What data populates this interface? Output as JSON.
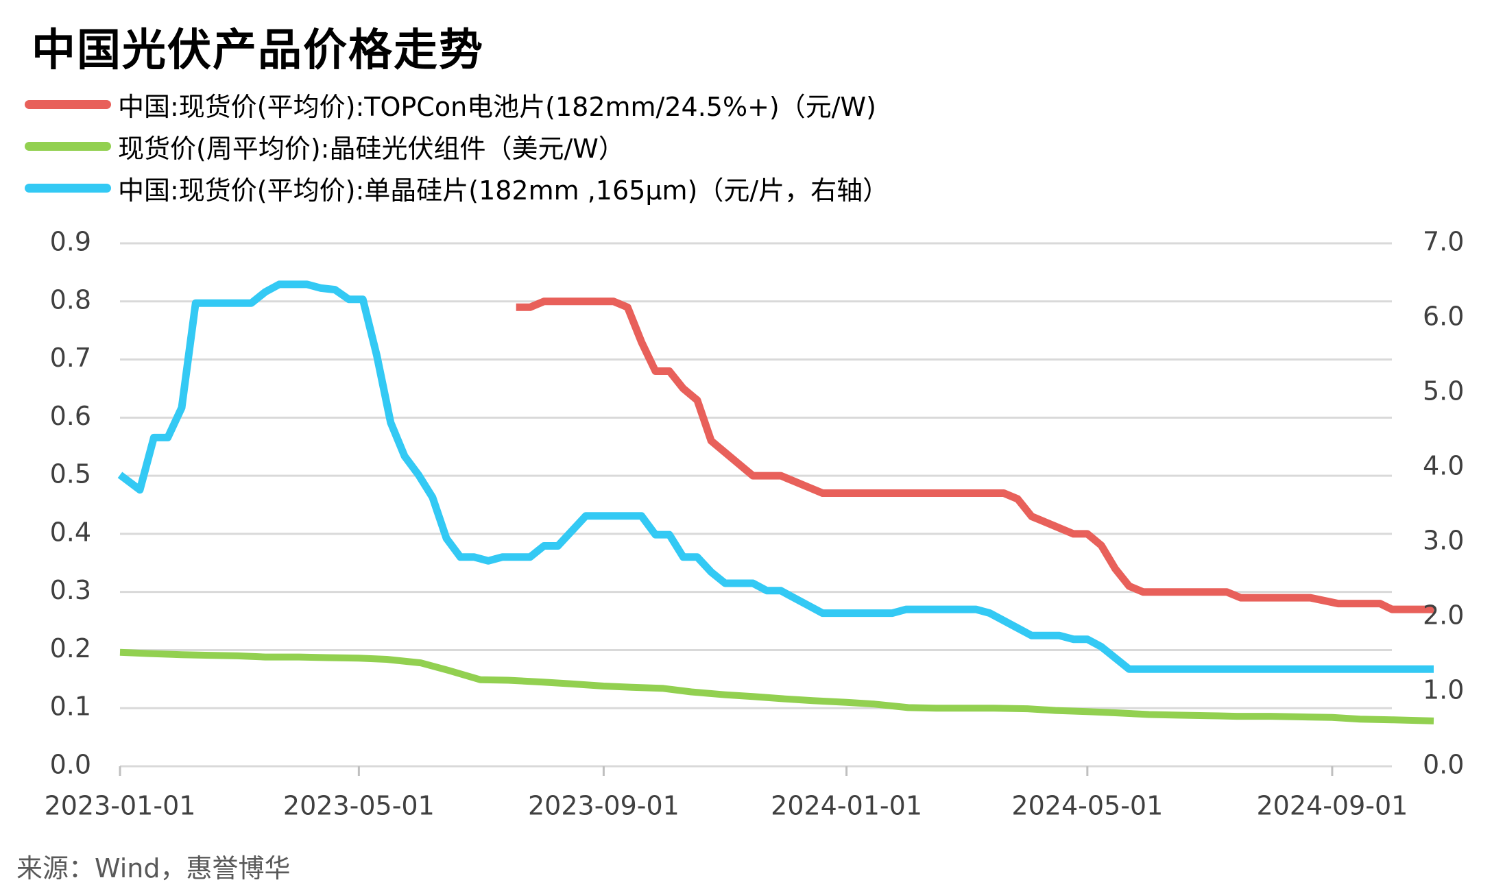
{
  "title": "中国光伏产品价格走势",
  "source": "来源：Wind，惠誉博华",
  "chart_data": {
    "type": "line",
    "title": "中国光伏产品价格走势",
    "x_range": [
      "2023-01-01",
      "2024-10-01"
    ],
    "x_ticks": [
      "2023-01-01",
      "2023-05-01",
      "2023-09-01",
      "2024-01-01",
      "2024-05-01",
      "2024-09-01"
    ],
    "y_left": {
      "range": [
        0,
        0.9
      ],
      "ticks": [
        "0.0",
        "0.1",
        "0.2",
        "0.3",
        "0.4",
        "0.5",
        "0.6",
        "0.7",
        "0.8",
        "0.9"
      ]
    },
    "y_right": {
      "range": [
        0,
        7
      ],
      "ticks": [
        "0.0",
        "1.0",
        "2.0",
        "3.0",
        "4.0",
        "5.0",
        "6.0",
        "7.0"
      ]
    },
    "grid": true,
    "legend_position": "top-left",
    "series": [
      {
        "name": "中国:现货价(平均价):TOPCon电池片(182mm/24.5%+)（元/W)",
        "axis": "left",
        "color": "#e8605a",
        "points": [
          [
            "2023-07-19",
            0.79
          ],
          [
            "2023-07-26",
            0.79
          ],
          [
            "2023-08-02",
            0.8
          ],
          [
            "2023-08-09",
            0.8
          ],
          [
            "2023-08-16",
            0.8
          ],
          [
            "2023-08-23",
            0.8
          ],
          [
            "2023-08-30",
            0.8
          ],
          [
            "2023-09-06",
            0.8
          ],
          [
            "2023-09-13",
            0.79
          ],
          [
            "2023-09-20",
            0.73
          ],
          [
            "2023-09-27",
            0.68
          ],
          [
            "2023-10-04",
            0.68
          ],
          [
            "2023-10-11",
            0.65
          ],
          [
            "2023-10-18",
            0.63
          ],
          [
            "2023-10-25",
            0.56
          ],
          [
            "2023-11-01",
            0.54
          ],
          [
            "2023-11-08",
            0.52
          ],
          [
            "2023-11-15",
            0.5
          ],
          [
            "2023-11-22",
            0.5
          ],
          [
            "2023-11-29",
            0.5
          ],
          [
            "2023-12-06",
            0.49
          ],
          [
            "2023-12-13",
            0.48
          ],
          [
            "2023-12-20",
            0.47
          ],
          [
            "2023-12-27",
            0.47
          ],
          [
            "2024-01-03",
            0.47
          ],
          [
            "2024-01-10",
            0.47
          ],
          [
            "2024-01-17",
            0.47
          ],
          [
            "2024-01-24",
            0.47
          ],
          [
            "2024-01-31",
            0.47
          ],
          [
            "2024-02-07",
            0.47
          ],
          [
            "2024-02-14",
            0.47
          ],
          [
            "2024-02-21",
            0.47
          ],
          [
            "2024-02-28",
            0.47
          ],
          [
            "2024-03-06",
            0.47
          ],
          [
            "2024-03-13",
            0.47
          ],
          [
            "2024-03-20",
            0.47
          ],
          [
            "2024-03-27",
            0.46
          ],
          [
            "2024-04-03",
            0.43
          ],
          [
            "2024-04-10",
            0.42
          ],
          [
            "2024-04-17",
            0.41
          ],
          [
            "2024-04-24",
            0.4
          ],
          [
            "2024-05-01",
            0.4
          ],
          [
            "2024-05-08",
            0.38
          ],
          [
            "2024-05-15",
            0.34
          ],
          [
            "2024-05-22",
            0.31
          ],
          [
            "2024-05-29",
            0.3
          ],
          [
            "2024-06-05",
            0.3
          ],
          [
            "2024-06-12",
            0.3
          ],
          [
            "2024-06-19",
            0.3
          ],
          [
            "2024-06-26",
            0.3
          ],
          [
            "2024-07-03",
            0.3
          ],
          [
            "2024-07-10",
            0.3
          ],
          [
            "2024-07-17",
            0.29
          ],
          [
            "2024-07-24",
            0.29
          ],
          [
            "2024-07-31",
            0.29
          ],
          [
            "2024-08-07",
            0.29
          ],
          [
            "2024-08-14",
            0.29
          ],
          [
            "2024-08-21",
            0.29
          ],
          [
            "2024-08-28",
            0.285
          ],
          [
            "2024-09-04",
            0.28
          ],
          [
            "2024-09-11",
            0.28
          ],
          [
            "2024-09-18",
            0.28
          ],
          [
            "2024-09-25",
            0.28
          ],
          [
            "2024-10-01",
            0.27
          ],
          [
            "2024-10-08",
            0.27
          ],
          [
            "2024-10-15",
            0.27
          ],
          [
            "2024-10-22",
            0.27
          ]
        ]
      },
      {
        "name": "现货价(周平均价):晶硅光伏组件（美元/W）",
        "axis": "left",
        "color": "#92d050",
        "points": [
          [
            "2023-01-01",
            0.196
          ],
          [
            "2023-01-15",
            0.194
          ],
          [
            "2023-02-01",
            0.192
          ],
          [
            "2023-02-15",
            0.191
          ],
          [
            "2023-03-01",
            0.19
          ],
          [
            "2023-03-15",
            0.188
          ],
          [
            "2023-04-01",
            0.188
          ],
          [
            "2023-04-15",
            0.187
          ],
          [
            "2023-05-01",
            0.186
          ],
          [
            "2023-05-15",
            0.184
          ],
          [
            "2023-06-01",
            0.178
          ],
          [
            "2023-06-15",
            0.165
          ],
          [
            "2023-07-01",
            0.149
          ],
          [
            "2023-07-15",
            0.148
          ],
          [
            "2023-08-01",
            0.145
          ],
          [
            "2023-08-15",
            0.142
          ],
          [
            "2023-09-01",
            0.138
          ],
          [
            "2023-09-15",
            0.136
          ],
          [
            "2023-10-01",
            0.134
          ],
          [
            "2023-10-15",
            0.128
          ],
          [
            "2023-11-01",
            0.123
          ],
          [
            "2023-11-15",
            0.12
          ],
          [
            "2023-12-01",
            0.116
          ],
          [
            "2023-12-15",
            0.113
          ],
          [
            "2024-01-01",
            0.11
          ],
          [
            "2024-01-15",
            0.107
          ],
          [
            "2024-02-01",
            0.101
          ],
          [
            "2024-02-15",
            0.1
          ],
          [
            "2024-03-01",
            0.1
          ],
          [
            "2024-03-15",
            0.1
          ],
          [
            "2024-04-01",
            0.099
          ],
          [
            "2024-04-15",
            0.096
          ],
          [
            "2024-05-01",
            0.094
          ],
          [
            "2024-05-15",
            0.092
          ],
          [
            "2024-06-01",
            0.089
          ],
          [
            "2024-06-15",
            0.088
          ],
          [
            "2024-07-01",
            0.087
          ],
          [
            "2024-07-15",
            0.086
          ],
          [
            "2024-08-01",
            0.086
          ],
          [
            "2024-08-15",
            0.085
          ],
          [
            "2024-09-01",
            0.084
          ],
          [
            "2024-09-15",
            0.081
          ],
          [
            "2024-10-01",
            0.08
          ],
          [
            "2024-10-22",
            0.078
          ]
        ]
      },
      {
        "name": "中国:现货价(平均价):单晶硅片(182mm ,165μm)（元/片，右轴）",
        "axis": "right",
        "color": "#33c9f4",
        "points": [
          [
            "2023-01-01",
            3.9
          ],
          [
            "2023-01-11",
            3.7
          ],
          [
            "2023-01-18",
            4.4
          ],
          [
            "2023-01-25",
            4.4
          ],
          [
            "2023-02-01",
            4.8
          ],
          [
            "2023-02-08",
            6.2
          ],
          [
            "2023-02-15",
            6.2
          ],
          [
            "2023-02-22",
            6.2
          ],
          [
            "2023-03-01",
            6.2
          ],
          [
            "2023-03-08",
            6.2
          ],
          [
            "2023-03-15",
            6.35
          ],
          [
            "2023-03-22",
            6.45
          ],
          [
            "2023-03-29",
            6.45
          ],
          [
            "2023-04-05",
            6.45
          ],
          [
            "2023-04-12",
            6.4
          ],
          [
            "2023-04-19",
            6.38
          ],
          [
            "2023-04-26",
            6.25
          ],
          [
            "2023-05-03",
            6.25
          ],
          [
            "2023-05-10",
            5.5
          ],
          [
            "2023-05-17",
            4.6
          ],
          [
            "2023-05-24",
            4.15
          ],
          [
            "2023-05-31",
            3.9
          ],
          [
            "2023-06-07",
            3.6
          ],
          [
            "2023-06-14",
            3.05
          ],
          [
            "2023-06-21",
            2.8
          ],
          [
            "2023-06-28",
            2.8
          ],
          [
            "2023-07-05",
            2.75
          ],
          [
            "2023-07-12",
            2.8
          ],
          [
            "2023-07-19",
            2.8
          ],
          [
            "2023-07-26",
            2.8
          ],
          [
            "2023-08-02",
            2.95
          ],
          [
            "2023-08-09",
            2.95
          ],
          [
            "2023-08-16",
            3.15
          ],
          [
            "2023-08-23",
            3.35
          ],
          [
            "2023-08-30",
            3.35
          ],
          [
            "2023-09-06",
            3.35
          ],
          [
            "2023-09-13",
            3.35
          ],
          [
            "2023-09-20",
            3.35
          ],
          [
            "2023-09-27",
            3.1
          ],
          [
            "2023-10-04",
            3.1
          ],
          [
            "2023-10-11",
            2.8
          ],
          [
            "2023-10-18",
            2.8
          ],
          [
            "2023-10-25",
            2.6
          ],
          [
            "2023-11-01",
            2.45
          ],
          [
            "2023-11-08",
            2.45
          ],
          [
            "2023-11-15",
            2.45
          ],
          [
            "2023-11-22",
            2.35
          ],
          [
            "2023-11-29",
            2.35
          ],
          [
            "2023-12-06",
            2.25
          ],
          [
            "2023-12-13",
            2.15
          ],
          [
            "2023-12-20",
            2.05
          ],
          [
            "2023-12-27",
            2.05
          ],
          [
            "2024-01-03",
            2.05
          ],
          [
            "2024-01-10",
            2.05
          ],
          [
            "2024-01-17",
            2.05
          ],
          [
            "2024-01-24",
            2.05
          ],
          [
            "2024-01-31",
            2.1
          ],
          [
            "2024-02-07",
            2.1
          ],
          [
            "2024-02-14",
            2.1
          ],
          [
            "2024-02-21",
            2.1
          ],
          [
            "2024-02-28",
            2.1
          ],
          [
            "2024-03-06",
            2.1
          ],
          [
            "2024-03-13",
            2.05
          ],
          [
            "2024-03-20",
            1.95
          ],
          [
            "2024-03-27",
            1.85
          ],
          [
            "2024-04-03",
            1.75
          ],
          [
            "2024-04-10",
            1.75
          ],
          [
            "2024-04-17",
            1.75
          ],
          [
            "2024-04-24",
            1.7
          ],
          [
            "2024-05-01",
            1.7
          ],
          [
            "2024-05-08",
            1.6
          ],
          [
            "2024-05-15",
            1.45
          ],
          [
            "2024-05-22",
            1.3
          ],
          [
            "2024-05-29",
            1.3
          ],
          [
            "2024-06-15",
            1.3
          ],
          [
            "2024-07-01",
            1.3
          ],
          [
            "2024-07-15",
            1.3
          ],
          [
            "2024-08-01",
            1.3
          ],
          [
            "2024-08-15",
            1.3
          ],
          [
            "2024-09-01",
            1.3
          ],
          [
            "2024-09-15",
            1.3
          ],
          [
            "2024-10-01",
            1.3
          ],
          [
            "2024-10-22",
            1.3
          ]
        ]
      }
    ]
  }
}
